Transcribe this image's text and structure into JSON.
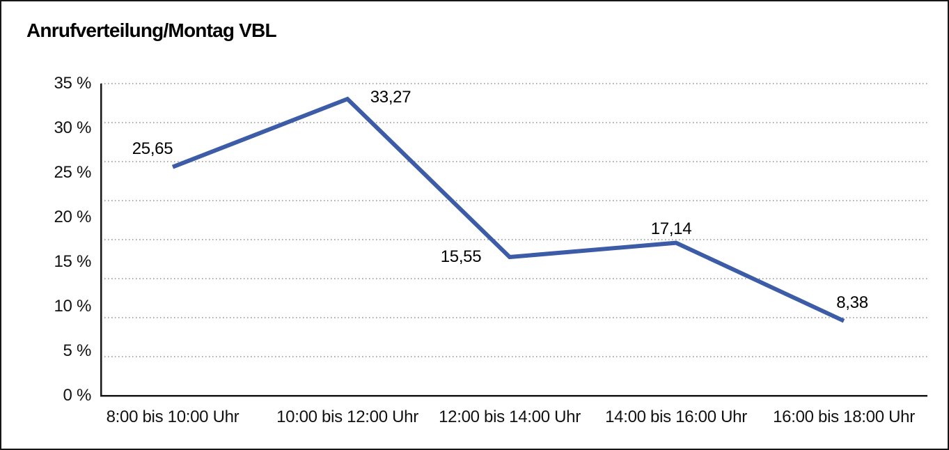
{
  "title": "Anrufverteilung/Montag VBL",
  "chart_data": {
    "type": "line",
    "title": "Anrufverteilung/Montag VBL",
    "categories": [
      "8:00 bis 10:00 Uhr",
      "10:00 bis 12:00 Uhr",
      "12:00 bis 14:00 Uhr",
      "14:00 bis 16:00 Uhr",
      "16:00 bis 18:00 Uhr"
    ],
    "values": [
      25.65,
      33.27,
      15.55,
      17.14,
      8.38
    ],
    "value_labels": [
      "25,65",
      "33,27",
      "15,55",
      "17,14",
      "8,38"
    ],
    "y_tick_labels": [
      "35 %",
      "30 %",
      "25 %",
      "20 %",
      "15 %",
      "10 %",
      "5 %",
      "0 %"
    ],
    "y_tick_values": [
      35,
      30,
      25,
      20,
      15,
      10,
      5,
      0
    ],
    "ylim": [
      0,
      35
    ],
    "xlabel": "",
    "ylabel": "",
    "legend_position": "none",
    "grid": "horizontal-dotted",
    "gridline_count": 8,
    "line_color": "#3c5ca8",
    "axis_color": "#161616",
    "gridline_color": "#555555",
    "text_color": "#111111"
  }
}
